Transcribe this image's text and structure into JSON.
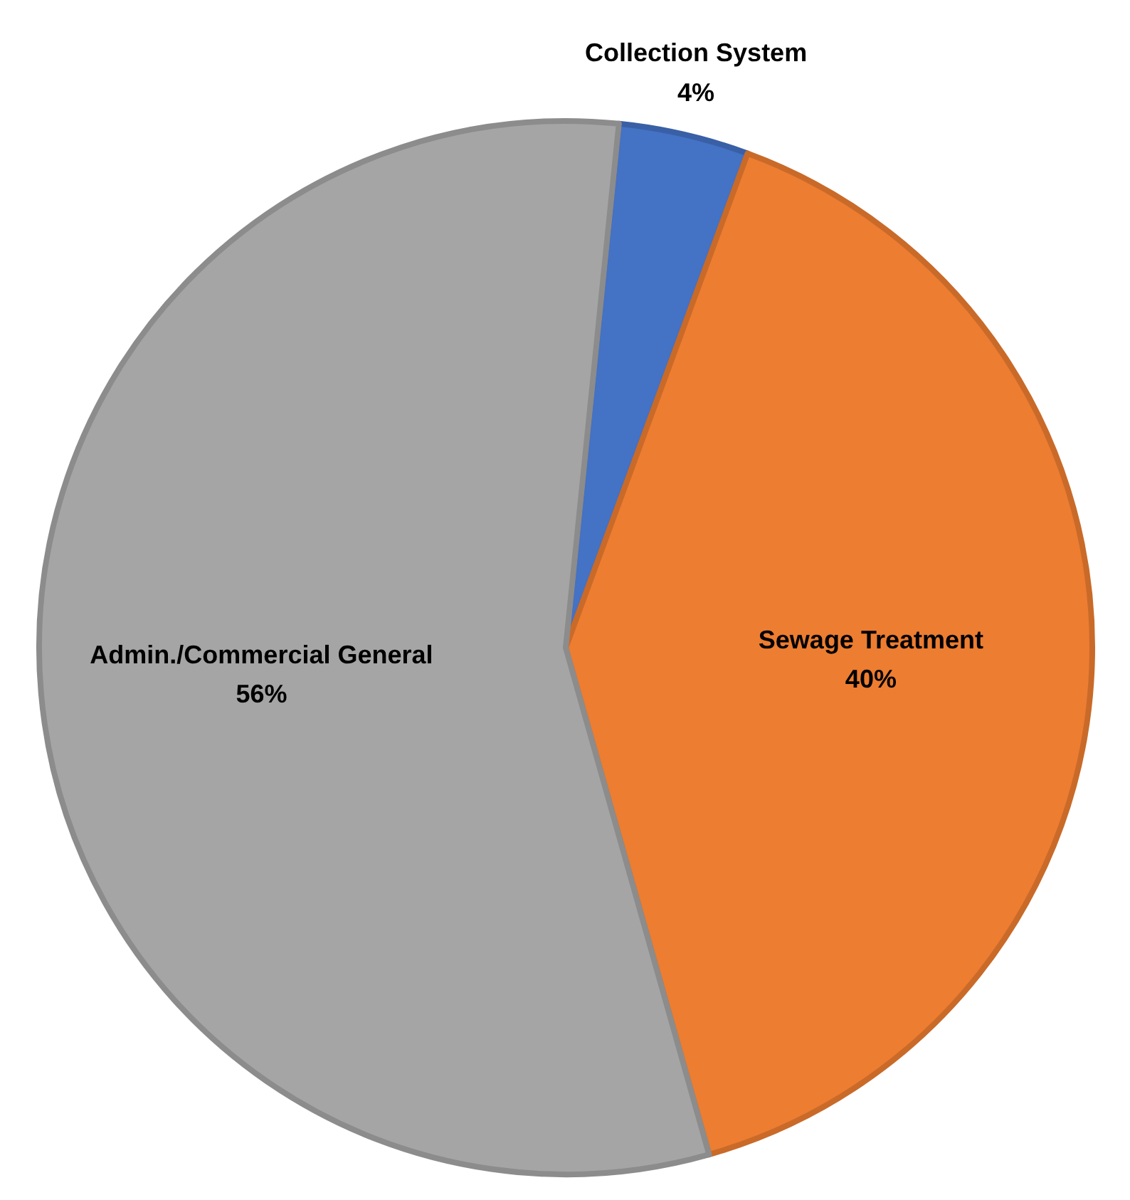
{
  "chart_data": {
    "type": "pie",
    "categories": [
      "Collection System",
      "Sewage Treatment",
      "Admin./Commercial General"
    ],
    "values": [
      4,
      40,
      56
    ],
    "colors": [
      "#4472c4",
      "#ed7d31",
      "#a5a5a5"
    ],
    "value_labels": [
      "4%",
      "40%",
      "56%"
    ]
  }
}
